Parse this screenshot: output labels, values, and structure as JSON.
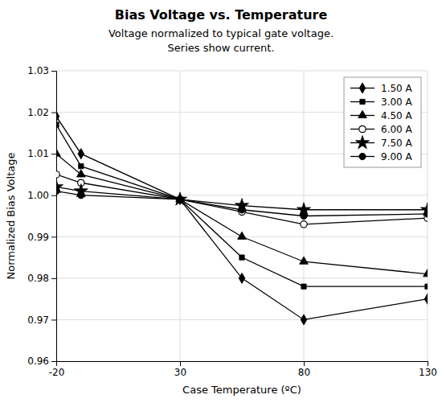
{
  "chart_data": {
    "type": "line",
    "title": "Bias Voltage vs. Temperature",
    "subtitle": [
      "Voltage normalized to typical gate voltage.",
      "Series show current."
    ],
    "xlabel": "Case Temperature (ºC)",
    "ylabel": "Normalized Bias Voltage",
    "x": [
      -20,
      -10,
      30,
      55,
      80,
      130
    ],
    "xlim": [
      -20,
      130
    ],
    "xticks": [
      -20,
      30,
      80,
      130
    ],
    "ylim": [
      0.96,
      1.03
    ],
    "yticks": [
      0.96,
      0.97,
      0.98,
      0.99,
      {
        "value": 1,
        "label": "1.00"
      },
      1.01,
      1.02,
      1.03
    ],
    "grid": true,
    "legend": "upper right",
    "series": [
      {
        "name": "1.50 A",
        "color": "black",
        "marker": "diamond",
        "values": [
          1.019,
          1.01,
          0.999,
          0.98,
          0.97,
          0.975
        ]
      },
      {
        "name": "3.00 A",
        "color": "black",
        "marker": "square",
        "values": [
          1.017,
          1.007,
          0.999,
          0.985,
          0.978,
          0.978
        ]
      },
      {
        "name": "4.50 A",
        "color": "black",
        "marker": "triangle",
        "values": [
          1.01,
          1.005,
          0.999,
          0.99,
          0.984,
          0.981
        ]
      },
      {
        "name": "6.00 A",
        "color": "black",
        "marker": "circle-open",
        "values": [
          1.005,
          1.003,
          0.999,
          0.996,
          0.993,
          0.9945
        ]
      },
      {
        "name": "7.50 A",
        "color": "black",
        "marker": "star",
        "values": [
          1.002,
          1.001,
          0.999,
          0.9975,
          0.9965,
          0.9965
        ]
      },
      {
        "name": "9.00 A",
        "color": "black",
        "marker": "circle",
        "values": [
          1.001,
          1.0,
          0.999,
          0.9965,
          0.995,
          0.9955
        ]
      }
    ]
  }
}
